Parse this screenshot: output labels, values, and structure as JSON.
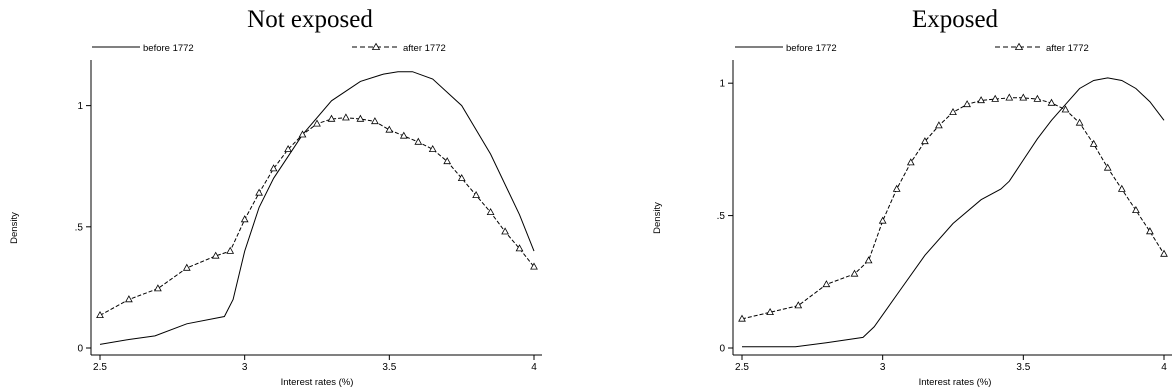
{
  "chart_data": [
    {
      "type": "line",
      "title": "Not exposed",
      "xlabel": "Interest rates (%)",
      "ylabel": "Density",
      "xlim": [
        2.5,
        4.0
      ],
      "ylim": [
        0,
        1.18
      ],
      "xticks": [
        {
          "v": 2.5,
          "label": "2.5"
        },
        {
          "v": 3,
          "label": "3"
        },
        {
          "v": 3.5,
          "label": "3.5"
        },
        {
          "v": 4,
          "label": "4"
        }
      ],
      "yticks": [
        {
          "v": 0,
          "label": "0"
        },
        {
          "v": 0.5,
          "label": ".5"
        },
        {
          "v": 1,
          "label": "1"
        }
      ],
      "grid": false,
      "legend_position": "top",
      "series": [
        {
          "name": "before 1772",
          "style": "solid",
          "x": [
            2.5,
            2.6,
            2.69,
            2.8,
            2.93,
            2.96,
            3.0,
            3.05,
            3.1,
            3.2,
            3.3,
            3.4,
            3.48,
            3.53,
            3.58,
            3.65,
            3.75,
            3.85,
            3.95,
            4.0
          ],
          "y": [
            0.015,
            0.035,
            0.05,
            0.1,
            0.13,
            0.2,
            0.4,
            0.58,
            0.7,
            0.88,
            1.02,
            1.1,
            1.13,
            1.14,
            1.14,
            1.11,
            1.0,
            0.8,
            0.55,
            0.4
          ]
        },
        {
          "name": "after 1772",
          "style": "dashed-triangle",
          "x": [
            2.5,
            2.6,
            2.7,
            2.8,
            2.9,
            2.95,
            3.0,
            3.05,
            3.1,
            3.15,
            3.2,
            3.25,
            3.3,
            3.35,
            3.4,
            3.45,
            3.5,
            3.55,
            3.6,
            3.65,
            3.7,
            3.75,
            3.8,
            3.85,
            3.9,
            3.95,
            4.0
          ],
          "y": [
            0.135,
            0.2,
            0.245,
            0.33,
            0.38,
            0.4,
            0.53,
            0.64,
            0.74,
            0.82,
            0.88,
            0.925,
            0.945,
            0.95,
            0.945,
            0.935,
            0.9,
            0.875,
            0.85,
            0.82,
            0.77,
            0.7,
            0.63,
            0.56,
            0.48,
            0.41,
            0.335
          ]
        }
      ]
    },
    {
      "type": "line",
      "title": "Exposed",
      "xlabel": "Interest rates (%)",
      "ylabel": "Density",
      "xlim": [
        2.5,
        4.0
      ],
      "ylim": [
        0,
        1.08
      ],
      "xticks": [
        {
          "v": 2.5,
          "label": "2.5"
        },
        {
          "v": 3,
          "label": "3"
        },
        {
          "v": 3.5,
          "label": "3.5"
        },
        {
          "v": 4,
          "label": "4"
        }
      ],
      "yticks": [
        {
          "v": 0,
          "label": "0"
        },
        {
          "v": 0.5,
          "label": ".5"
        },
        {
          "v": 1,
          "label": "1"
        }
      ],
      "grid": false,
      "legend_position": "top",
      "series": [
        {
          "name": "before 1772",
          "style": "solid",
          "x": [
            2.5,
            2.6,
            2.69,
            2.8,
            2.93,
            2.97,
            3.05,
            3.15,
            3.25,
            3.35,
            3.42,
            3.45,
            3.5,
            3.55,
            3.6,
            3.65,
            3.7,
            3.75,
            3.8,
            3.85,
            3.9,
            3.95,
            4.0
          ],
          "y": [
            0.005,
            0.005,
            0.005,
            0.02,
            0.04,
            0.08,
            0.2,
            0.35,
            0.47,
            0.56,
            0.6,
            0.63,
            0.71,
            0.79,
            0.86,
            0.92,
            0.98,
            1.01,
            1.02,
            1.01,
            0.98,
            0.93,
            0.86
          ]
        },
        {
          "name": "after 1772",
          "style": "dashed-triangle",
          "x": [
            2.5,
            2.6,
            2.7,
            2.8,
            2.9,
            2.95,
            3.0,
            3.05,
            3.1,
            3.15,
            3.2,
            3.25,
            3.3,
            3.35,
            3.4,
            3.45,
            3.5,
            3.55,
            3.6,
            3.65,
            3.7,
            3.75,
            3.8,
            3.85,
            3.9,
            3.95,
            4.0
          ],
          "y": [
            0.11,
            0.135,
            0.16,
            0.24,
            0.28,
            0.33,
            0.48,
            0.6,
            0.7,
            0.78,
            0.84,
            0.89,
            0.92,
            0.935,
            0.94,
            0.945,
            0.945,
            0.94,
            0.925,
            0.9,
            0.85,
            0.77,
            0.68,
            0.6,
            0.52,
            0.44,
            0.355
          ]
        }
      ]
    }
  ]
}
